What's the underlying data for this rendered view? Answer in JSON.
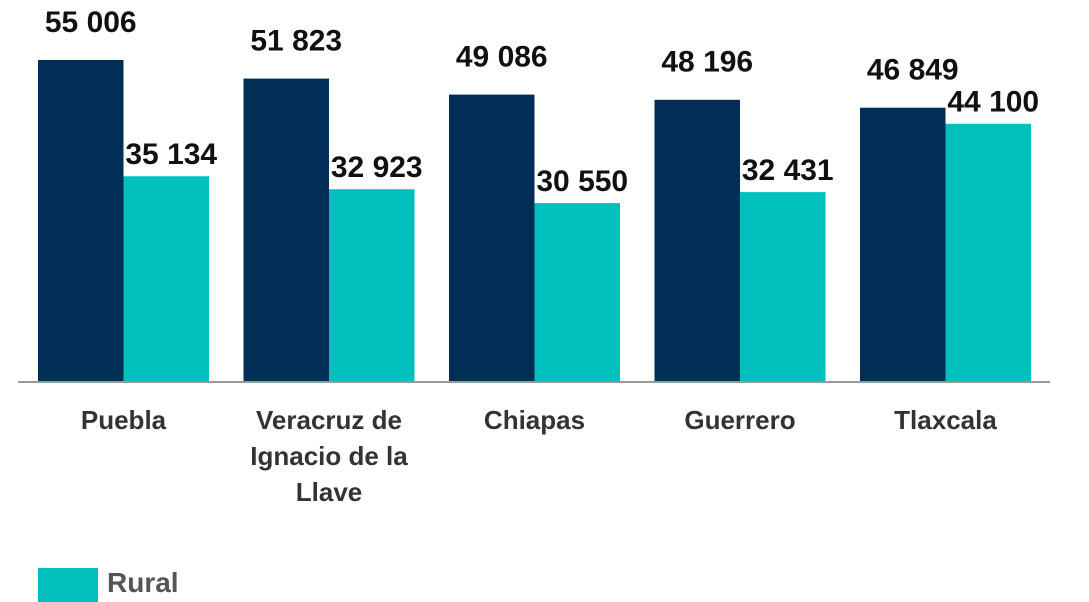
{
  "chart_data": {
    "type": "bar",
    "categories": [
      "Puebla",
      "Veracruz de Ignacio de la Llave",
      "Chiapas",
      "Guerrero",
      "Tlaxcala"
    ],
    "series": [
      {
        "color": "#012e57",
        "values": [
          55006,
          51823,
          49086,
          48196,
          46849
        ],
        "value_labels": [
          "55 006",
          "51 823",
          "49 086",
          "48 196",
          "46 849"
        ]
      },
      {
        "name": "Rural",
        "color": "#01bfbd",
        "values": [
          35134,
          32923,
          30550,
          32431,
          44100
        ],
        "value_labels": [
          "35 134",
          "32 923",
          "30 550",
          "32 431",
          "44 100"
        ]
      }
    ],
    "legend": "bottom-left"
  }
}
